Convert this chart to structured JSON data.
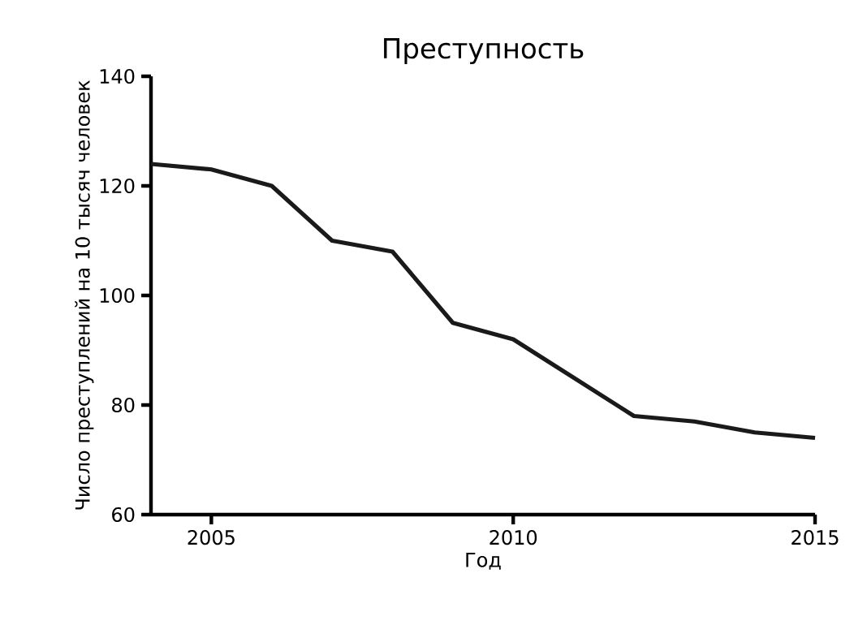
{
  "chart_data": {
    "type": "line",
    "title": "Преступность",
    "xlabel": "Год",
    "ylabel": "Число преступлений на 10 тысяч человек",
    "x": [
      2004,
      2005,
      2006,
      2007,
      2008,
      2009,
      2010,
      2011,
      2012,
      2013,
      2014,
      2015
    ],
    "values": [
      124,
      123,
      120,
      110,
      108,
      95,
      92,
      85,
      78,
      77,
      75,
      74
    ],
    "color": "#1a1a1a",
    "xlim": [
      2004,
      2015
    ],
    "ylim": [
      60,
      140
    ],
    "xticks": [
      2005,
      2010,
      2015
    ],
    "yticks": [
      60,
      80,
      100,
      120,
      140
    ],
    "grid": false,
    "marker": "none",
    "line_style": "solid"
  }
}
